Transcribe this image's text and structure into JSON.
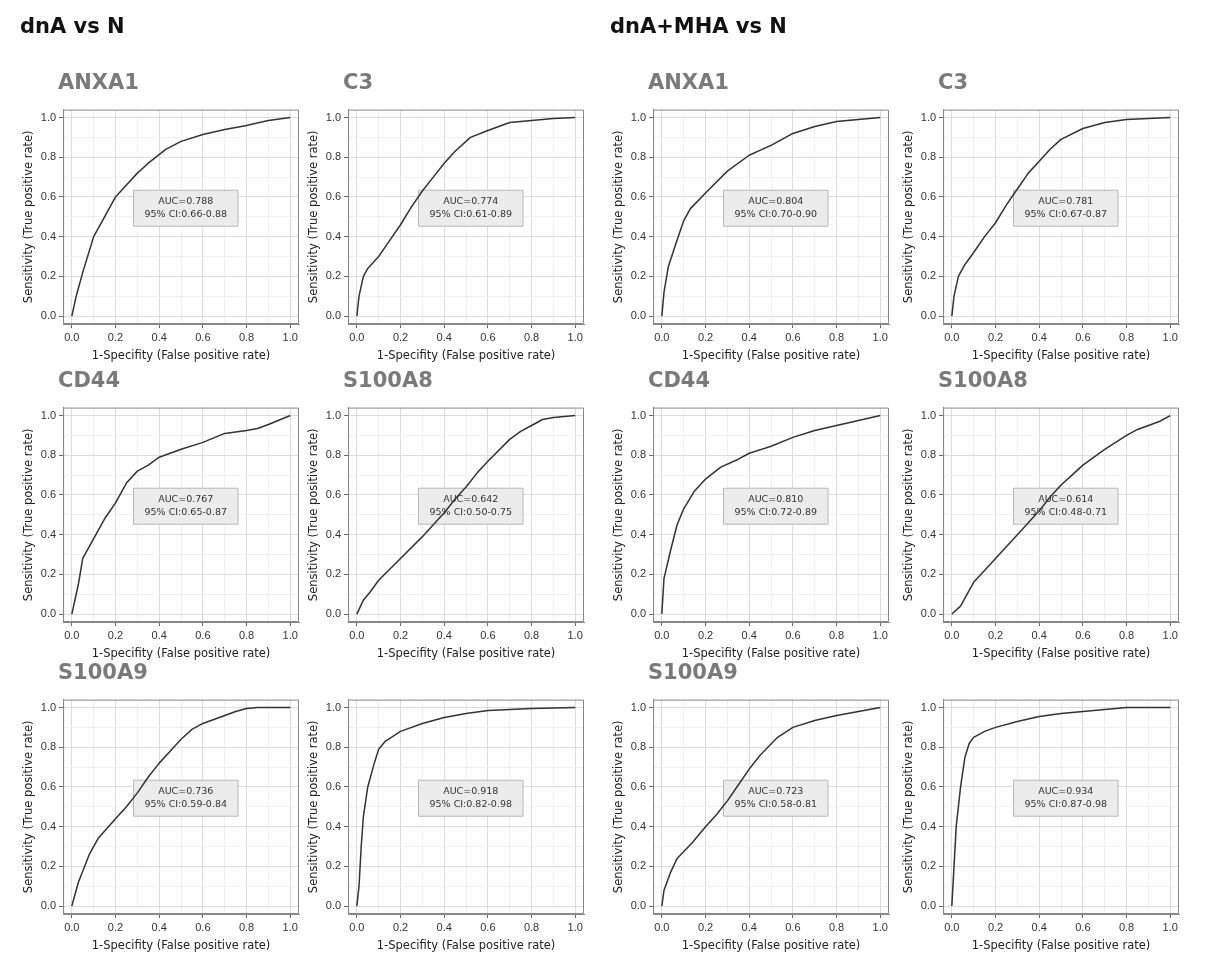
{
  "chart_data": [
    {
      "type": "line",
      "subtitle": "dnA vs N",
      "title": "ANXA1",
      "xlabel": "1-Specifity (False positive rate)",
      "ylabel": "Sensitivity (True positive rate)",
      "xlim": [
        -0.04,
        1.04
      ],
      "ylim": [
        -0.04,
        1.04
      ],
      "xticks": [
        {
          "value": 0,
          "label": "0.0"
        },
        {
          "value": 0.1,
          "label": null
        },
        {
          "value": 0.2,
          "label": "0.2"
        },
        {
          "value": 0.3,
          "label": null
        },
        {
          "value": 0.4,
          "label": "0.4"
        },
        {
          "value": 0.5,
          "label": null
        },
        {
          "value": 0.6,
          "label": "0.6"
        },
        {
          "value": 0.7,
          "label": null
        },
        {
          "value": 0.8,
          "label": "0.8"
        },
        {
          "value": 0.9,
          "label": null
        },
        {
          "value": 1,
          "label": "1.0"
        }
      ],
      "yticks": [
        {
          "value": 0,
          "label": "0.0"
        },
        {
          "value": 0.1,
          "label": null
        },
        {
          "value": 0.2,
          "label": "0.2"
        },
        {
          "value": 0.3,
          "label": null
        },
        {
          "value": 0.4,
          "label": "0.4"
        },
        {
          "value": 0.5,
          "label": null
        },
        {
          "value": 0.6,
          "label": "0.6"
        },
        {
          "value": 0.7,
          "label": null
        },
        {
          "value": 0.8,
          "label": "0.8"
        },
        {
          "value": 0.9,
          "label": null
        },
        {
          "value": 1,
          "label": "1.0"
        }
      ],
      "grid": true,
      "marker": "none",
      "annotations": [
        "AUC=0.788",
        "95% CI:0.66-0.88"
      ],
      "series": [
        {
          "color": "#333333",
          "x": [
            0,
            0.02,
            0.05,
            0.1,
            0.15,
            0.2,
            0.25,
            0.3,
            0.35,
            0.43,
            0.5,
            0.6,
            0.7,
            0.8,
            0.9,
            1
          ],
          "values": [
            0,
            0.1,
            0.22,
            0.4,
            0.5,
            0.6,
            0.66,
            0.72,
            0.77,
            0.84,
            0.88,
            0.915,
            0.94,
            0.96,
            0.985,
            1
          ]
        }
      ]
    },
    {
      "type": "line",
      "title": "C3",
      "xlabel": "1-Specifity (False positive rate)",
      "ylabel": "Sensitivity (True positive rate)",
      "xlim": [
        -0.04,
        1.04
      ],
      "ylim": [
        -0.04,
        1.04
      ],
      "xticks": [
        {
          "value": 0,
          "label": "0.0"
        },
        {
          "value": 0.1,
          "label": null
        },
        {
          "value": 0.2,
          "label": "0.2"
        },
        {
          "value": 0.3,
          "label": null
        },
        {
          "value": 0.4,
          "label": "0.4"
        },
        {
          "value": 0.5,
          "label": null
        },
        {
          "value": 0.6,
          "label": "0.6"
        },
        {
          "value": 0.7,
          "label": null
        },
        {
          "value": 0.8,
          "label": "0.8"
        },
        {
          "value": 0.9,
          "label": null
        },
        {
          "value": 1,
          "label": "1.0"
        }
      ],
      "yticks": [
        {
          "value": 0,
          "label": "0.0"
        },
        {
          "value": 0.1,
          "label": null
        },
        {
          "value": 0.2,
          "label": "0.2"
        },
        {
          "value": 0.3,
          "label": null
        },
        {
          "value": 0.4,
          "label": "0.4"
        },
        {
          "value": 0.5,
          "label": null
        },
        {
          "value": 0.6,
          "label": "0.6"
        },
        {
          "value": 0.7,
          "label": null
        },
        {
          "value": 0.8,
          "label": "0.8"
        },
        {
          "value": 0.9,
          "label": null
        },
        {
          "value": 1,
          "label": "1.0"
        }
      ],
      "grid": true,
      "marker": "none",
      "annotations": [
        "AUC=0.774",
        "95% CI:0.61-0.89"
      ],
      "series": [
        {
          "color": "#333333",
          "x": [
            0,
            0.01,
            0.03,
            0.05,
            0.1,
            0.15,
            0.2,
            0.25,
            0.3,
            0.35,
            0.4,
            0.45,
            0.52,
            0.6,
            0.7,
            0.8,
            0.9,
            1
          ],
          "values": [
            0,
            0.1,
            0.2,
            0.24,
            0.3,
            0.38,
            0.46,
            0.55,
            0.63,
            0.7,
            0.77,
            0.83,
            0.9,
            0.935,
            0.975,
            0.985,
            0.995,
            1
          ]
        }
      ]
    },
    {
      "type": "line",
      "subtitle": "dnA+MHA vs N",
      "title": "ANXA1",
      "xlabel": "1-Specifity (False positive rate)",
      "ylabel": "Sensitivity (True positive rate)",
      "xlim": [
        -0.04,
        1.04
      ],
      "ylim": [
        -0.04,
        1.04
      ],
      "xticks": [
        {
          "value": 0,
          "label": "0.0"
        },
        {
          "value": 0.1,
          "label": null
        },
        {
          "value": 0.2,
          "label": "0.2"
        },
        {
          "value": 0.3,
          "label": null
        },
        {
          "value": 0.4,
          "label": "0.4"
        },
        {
          "value": 0.5,
          "label": null
        },
        {
          "value": 0.6,
          "label": "0.6"
        },
        {
          "value": 0.7,
          "label": null
        },
        {
          "value": 0.8,
          "label": "0.8"
        },
        {
          "value": 0.9,
          "label": null
        },
        {
          "value": 1,
          "label": "1.0"
        }
      ],
      "yticks": [
        {
          "value": 0,
          "label": "0.0"
        },
        {
          "value": 0.1,
          "label": null
        },
        {
          "value": 0.2,
          "label": "0.2"
        },
        {
          "value": 0.3,
          "label": null
        },
        {
          "value": 0.4,
          "label": "0.4"
        },
        {
          "value": 0.5,
          "label": null
        },
        {
          "value": 0.6,
          "label": "0.6"
        },
        {
          "value": 0.7,
          "label": null
        },
        {
          "value": 0.8,
          "label": "0.8"
        },
        {
          "value": 0.9,
          "label": null
        },
        {
          "value": 1,
          "label": "1.0"
        }
      ],
      "grid": true,
      "marker": "none",
      "annotations": [
        "AUC=0.804",
        "95% CI:0.70-0.90"
      ],
      "series": [
        {
          "color": "#333333",
          "x": [
            0,
            0.01,
            0.03,
            0.06,
            0.1,
            0.13,
            0.2,
            0.3,
            0.4,
            0.5,
            0.6,
            0.7,
            0.8,
            0.9,
            1
          ],
          "values": [
            0,
            0.12,
            0.25,
            0.35,
            0.48,
            0.54,
            0.62,
            0.73,
            0.81,
            0.86,
            0.92,
            0.955,
            0.98,
            0.99,
            1
          ]
        }
      ]
    },
    {
      "type": "line",
      "title": "C3",
      "xlabel": "1-Specifity (False positive rate)",
      "ylabel": "Sensitivity (True positive rate)",
      "xlim": [
        -0.04,
        1.04
      ],
      "ylim": [
        -0.04,
        1.04
      ],
      "xticks": [
        {
          "value": 0,
          "label": "0.0"
        },
        {
          "value": 0.1,
          "label": null
        },
        {
          "value": 0.2,
          "label": "0.2"
        },
        {
          "value": 0.3,
          "label": null
        },
        {
          "value": 0.4,
          "label": "0.4"
        },
        {
          "value": 0.5,
          "label": null
        },
        {
          "value": 0.6,
          "label": "0.6"
        },
        {
          "value": 0.7,
          "label": null
        },
        {
          "value": 0.8,
          "label": "0.8"
        },
        {
          "value": 0.9,
          "label": null
        },
        {
          "value": 1,
          "label": "1.0"
        }
      ],
      "yticks": [
        {
          "value": 0,
          "label": "0.0"
        },
        {
          "value": 0.1,
          "label": null
        },
        {
          "value": 0.2,
          "label": "0.2"
        },
        {
          "value": 0.3,
          "label": null
        },
        {
          "value": 0.4,
          "label": "0.4"
        },
        {
          "value": 0.5,
          "label": null
        },
        {
          "value": 0.6,
          "label": "0.6"
        },
        {
          "value": 0.7,
          "label": null
        },
        {
          "value": 0.8,
          "label": "0.8"
        },
        {
          "value": 0.9,
          "label": null
        },
        {
          "value": 1,
          "label": "1.0"
        }
      ],
      "grid": true,
      "marker": "none",
      "annotations": [
        "AUC=0.781",
        "95% CI:0.67-0.87"
      ],
      "series": [
        {
          "color": "#333333",
          "x": [
            0,
            0.01,
            0.03,
            0.06,
            0.1,
            0.15,
            0.2,
            0.25,
            0.3,
            0.35,
            0.4,
            0.45,
            0.5,
            0.6,
            0.7,
            0.8,
            0.9,
            1
          ],
          "values": [
            0,
            0.1,
            0.2,
            0.26,
            0.32,
            0.4,
            0.47,
            0.56,
            0.64,
            0.72,
            0.78,
            0.84,
            0.89,
            0.945,
            0.975,
            0.99,
            0.995,
            1
          ]
        }
      ]
    },
    {
      "type": "line",
      "title": "CD44",
      "xlabel": "1-Specifity (False positive rate)",
      "ylabel": "Sensitivity (True positive rate)",
      "xlim": [
        -0.04,
        1.04
      ],
      "ylim": [
        -0.04,
        1.04
      ],
      "xticks": [
        {
          "value": 0,
          "label": "0.0"
        },
        {
          "value": 0.1,
          "label": null
        },
        {
          "value": 0.2,
          "label": "0.2"
        },
        {
          "value": 0.3,
          "label": null
        },
        {
          "value": 0.4,
          "label": "0.4"
        },
        {
          "value": 0.5,
          "label": null
        },
        {
          "value": 0.6,
          "label": "0.6"
        },
        {
          "value": 0.7,
          "label": null
        },
        {
          "value": 0.8,
          "label": "0.8"
        },
        {
          "value": 0.9,
          "label": null
        },
        {
          "value": 1,
          "label": "1.0"
        }
      ],
      "yticks": [
        {
          "value": 0,
          "label": "0.0"
        },
        {
          "value": 0.1,
          "label": null
        },
        {
          "value": 0.2,
          "label": "0.2"
        },
        {
          "value": 0.3,
          "label": null
        },
        {
          "value": 0.4,
          "label": "0.4"
        },
        {
          "value": 0.5,
          "label": null
        },
        {
          "value": 0.6,
          "label": "0.6"
        },
        {
          "value": 0.7,
          "label": null
        },
        {
          "value": 0.8,
          "label": "0.8"
        },
        {
          "value": 0.9,
          "label": null
        },
        {
          "value": 1,
          "label": "1.0"
        }
      ],
      "grid": true,
      "marker": "none",
      "annotations": [
        "AUC=0.767",
        "95% CI:0.65-0.87"
      ],
      "series": [
        {
          "color": "#333333",
          "x": [
            0,
            0.03,
            0.05,
            0.1,
            0.15,
            0.2,
            0.25,
            0.3,
            0.35,
            0.4,
            0.5,
            0.6,
            0.7,
            0.8,
            0.85,
            0.9,
            1
          ],
          "values": [
            0,
            0.15,
            0.28,
            0.38,
            0.48,
            0.56,
            0.66,
            0.72,
            0.75,
            0.79,
            0.83,
            0.865,
            0.91,
            0.925,
            0.935,
            0.955,
            1
          ]
        }
      ]
    },
    {
      "type": "line",
      "title": "S100A8",
      "xlabel": "1-Specifity (False positive rate)",
      "ylabel": "Sensitivity (True positive rate)",
      "xlim": [
        -0.04,
        1.04
      ],
      "ylim": [
        -0.04,
        1.04
      ],
      "xticks": [
        {
          "value": 0,
          "label": "0.0"
        },
        {
          "value": 0.1,
          "label": null
        },
        {
          "value": 0.2,
          "label": "0.2"
        },
        {
          "value": 0.3,
          "label": null
        },
        {
          "value": 0.4,
          "label": "0.4"
        },
        {
          "value": 0.5,
          "label": null
        },
        {
          "value": 0.6,
          "label": "0.6"
        },
        {
          "value": 0.7,
          "label": null
        },
        {
          "value": 0.8,
          "label": "0.8"
        },
        {
          "value": 0.9,
          "label": null
        },
        {
          "value": 1,
          "label": "1.0"
        }
      ],
      "yticks": [
        {
          "value": 0,
          "label": "0.0"
        },
        {
          "value": 0.1,
          "label": null
        },
        {
          "value": 0.2,
          "label": "0.2"
        },
        {
          "value": 0.3,
          "label": null
        },
        {
          "value": 0.4,
          "label": "0.4"
        },
        {
          "value": 0.5,
          "label": null
        },
        {
          "value": 0.6,
          "label": "0.6"
        },
        {
          "value": 0.7,
          "label": null
        },
        {
          "value": 0.8,
          "label": "0.8"
        },
        {
          "value": 0.9,
          "label": null
        },
        {
          "value": 1,
          "label": "1.0"
        }
      ],
      "grid": true,
      "marker": "none",
      "annotations": [
        "AUC=0.642",
        "95% CI:0.50-0.75"
      ],
      "series": [
        {
          "color": "#333333",
          "x": [
            0,
            0.03,
            0.06,
            0.1,
            0.2,
            0.3,
            0.4,
            0.45,
            0.5,
            0.55,
            0.6,
            0.7,
            0.75,
            0.8,
            0.85,
            0.9,
            1
          ],
          "values": [
            0,
            0.07,
            0.11,
            0.17,
            0.28,
            0.39,
            0.51,
            0.58,
            0.64,
            0.71,
            0.77,
            0.88,
            0.92,
            0.95,
            0.98,
            0.99,
            1
          ]
        }
      ]
    },
    {
      "type": "line",
      "title": "CD44",
      "xlabel": "1-Specifity (False positive rate)",
      "ylabel": "Sensitivity (True positive rate)",
      "xlim": [
        -0.04,
        1.04
      ],
      "ylim": [
        -0.04,
        1.04
      ],
      "xticks": [
        {
          "value": 0,
          "label": "0.0"
        },
        {
          "value": 0.1,
          "label": null
        },
        {
          "value": 0.2,
          "label": "0.2"
        },
        {
          "value": 0.3,
          "label": null
        },
        {
          "value": 0.4,
          "label": "0.4"
        },
        {
          "value": 0.5,
          "label": null
        },
        {
          "value": 0.6,
          "label": "0.6"
        },
        {
          "value": 0.7,
          "label": null
        },
        {
          "value": 0.8,
          "label": "0.8"
        },
        {
          "value": 0.9,
          "label": null
        },
        {
          "value": 1,
          "label": "1.0"
        }
      ],
      "yticks": [
        {
          "value": 0,
          "label": "0.0"
        },
        {
          "value": 0.1,
          "label": null
        },
        {
          "value": 0.2,
          "label": "0.2"
        },
        {
          "value": 0.3,
          "label": null
        },
        {
          "value": 0.4,
          "label": "0.4"
        },
        {
          "value": 0.5,
          "label": null
        },
        {
          "value": 0.6,
          "label": "0.6"
        },
        {
          "value": 0.7,
          "label": null
        },
        {
          "value": 0.8,
          "label": "0.8"
        },
        {
          "value": 0.9,
          "label": null
        },
        {
          "value": 1,
          "label": "1.0"
        }
      ],
      "grid": true,
      "marker": "none",
      "annotations": [
        "AUC=0.810",
        "95% CI:0.72-0.89"
      ],
      "series": [
        {
          "color": "#333333",
          "x": [
            0,
            0.01,
            0.04,
            0.07,
            0.1,
            0.15,
            0.2,
            0.27,
            0.35,
            0.4,
            0.5,
            0.6,
            0.7,
            0.8,
            0.9,
            1
          ],
          "values": [
            0,
            0.18,
            0.32,
            0.45,
            0.53,
            0.62,
            0.68,
            0.74,
            0.78,
            0.81,
            0.845,
            0.89,
            0.925,
            0.95,
            0.975,
            1
          ]
        }
      ]
    },
    {
      "type": "line",
      "title": "S100A8",
      "xlabel": "1-Specifity (False positive rate)",
      "ylabel": "Sensitivity (True positive rate)",
      "xlim": [
        -0.04,
        1.04
      ],
      "ylim": [
        -0.04,
        1.04
      ],
      "xticks": [
        {
          "value": 0,
          "label": "0.0"
        },
        {
          "value": 0.1,
          "label": null
        },
        {
          "value": 0.2,
          "label": "0.2"
        },
        {
          "value": 0.3,
          "label": null
        },
        {
          "value": 0.4,
          "label": "0.4"
        },
        {
          "value": 0.5,
          "label": null
        },
        {
          "value": 0.6,
          "label": "0.6"
        },
        {
          "value": 0.7,
          "label": null
        },
        {
          "value": 0.8,
          "label": "0.8"
        },
        {
          "value": 0.9,
          "label": null
        },
        {
          "value": 1,
          "label": "1.0"
        }
      ],
      "yticks": [
        {
          "value": 0,
          "label": "0.0"
        },
        {
          "value": 0.1,
          "label": null
        },
        {
          "value": 0.2,
          "label": "0.2"
        },
        {
          "value": 0.3,
          "label": null
        },
        {
          "value": 0.4,
          "label": "0.4"
        },
        {
          "value": 0.5,
          "label": null
        },
        {
          "value": 0.6,
          "label": "0.6"
        },
        {
          "value": 0.7,
          "label": null
        },
        {
          "value": 0.8,
          "label": "0.8"
        },
        {
          "value": 0.9,
          "label": null
        },
        {
          "value": 1,
          "label": "1.0"
        }
      ],
      "grid": true,
      "marker": "none",
      "annotations": [
        "AUC=0.614",
        "95% CI:0.48-0.71"
      ],
      "series": [
        {
          "color": "#333333",
          "x": [
            0,
            0.04,
            0.07,
            0.1,
            0.2,
            0.3,
            0.4,
            0.45,
            0.5,
            0.55,
            0.6,
            0.7,
            0.8,
            0.85,
            0.95,
            1
          ],
          "values": [
            0,
            0.04,
            0.1,
            0.16,
            0.28,
            0.4,
            0.52,
            0.59,
            0.65,
            0.7,
            0.75,
            0.83,
            0.9,
            0.93,
            0.97,
            1
          ]
        }
      ]
    },
    {
      "type": "line",
      "title": "S100A9",
      "xlabel": "1-Specifity (False positive rate)",
      "ylabel": "Sensitivity (True positive rate)",
      "xlim": [
        -0.04,
        1.04
      ],
      "ylim": [
        -0.04,
        1.04
      ],
      "xticks": [
        {
          "value": 0,
          "label": "0.0"
        },
        {
          "value": 0.1,
          "label": null
        },
        {
          "value": 0.2,
          "label": "0.2"
        },
        {
          "value": 0.3,
          "label": null
        },
        {
          "value": 0.4,
          "label": "0.4"
        },
        {
          "value": 0.5,
          "label": null
        },
        {
          "value": 0.6,
          "label": "0.6"
        },
        {
          "value": 0.7,
          "label": null
        },
        {
          "value": 0.8,
          "label": "0.8"
        },
        {
          "value": 0.9,
          "label": null
        },
        {
          "value": 1,
          "label": "1.0"
        }
      ],
      "yticks": [
        {
          "value": 0,
          "label": "0.0"
        },
        {
          "value": 0.1,
          "label": null
        },
        {
          "value": 0.2,
          "label": "0.2"
        },
        {
          "value": 0.3,
          "label": null
        },
        {
          "value": 0.4,
          "label": "0.4"
        },
        {
          "value": 0.5,
          "label": null
        },
        {
          "value": 0.6,
          "label": "0.6"
        },
        {
          "value": 0.7,
          "label": null
        },
        {
          "value": 0.8,
          "label": "0.8"
        },
        {
          "value": 0.9,
          "label": null
        },
        {
          "value": 1,
          "label": "1.0"
        }
      ],
      "grid": true,
      "marker": "none",
      "annotations": [
        "AUC=0.736",
        "95% CI:0.59-0.84"
      ],
      "series": [
        {
          "color": "#333333",
          "x": [
            0,
            0.03,
            0.08,
            0.12,
            0.2,
            0.25,
            0.3,
            0.35,
            0.4,
            0.45,
            0.5,
            0.55,
            0.6,
            0.7,
            0.75,
            0.8,
            0.85,
            1
          ],
          "values": [
            0,
            0.12,
            0.26,
            0.34,
            0.44,
            0.5,
            0.57,
            0.65,
            0.72,
            0.78,
            0.84,
            0.89,
            0.92,
            0.96,
            0.98,
            0.995,
            1,
            1
          ]
        }
      ]
    },
    {
      "type": "line",
      "xlabel": "1-Specifity (False positive rate)",
      "ylabel": "Sensitivity (True positive rate)",
      "xlim": [
        -0.04,
        1.04
      ],
      "ylim": [
        -0.04,
        1.04
      ],
      "xticks": [
        {
          "value": 0,
          "label": "0.0"
        },
        {
          "value": 0.1,
          "label": null
        },
        {
          "value": 0.2,
          "label": "0.2"
        },
        {
          "value": 0.3,
          "label": null
        },
        {
          "value": 0.4,
          "label": "0.4"
        },
        {
          "value": 0.5,
          "label": null
        },
        {
          "value": 0.6,
          "label": "0.6"
        },
        {
          "value": 0.7,
          "label": null
        },
        {
          "value": 0.8,
          "label": "0.8"
        },
        {
          "value": 0.9,
          "label": null
        },
        {
          "value": 1,
          "label": "1.0"
        }
      ],
      "yticks": [
        {
          "value": 0,
          "label": "0.0"
        },
        {
          "value": 0.1,
          "label": null
        },
        {
          "value": 0.2,
          "label": "0.2"
        },
        {
          "value": 0.3,
          "label": null
        },
        {
          "value": 0.4,
          "label": "0.4"
        },
        {
          "value": 0.5,
          "label": null
        },
        {
          "value": 0.6,
          "label": "0.6"
        },
        {
          "value": 0.7,
          "label": null
        },
        {
          "value": 0.8,
          "label": "0.8"
        },
        {
          "value": 0.9,
          "label": null
        },
        {
          "value": 1,
          "label": "1.0"
        }
      ],
      "grid": true,
      "marker": "none",
      "annotations": [
        "AUC=0.918",
        "95% CI:0.82-0.98"
      ],
      "series": [
        {
          "color": "#333333",
          "x": [
            0,
            0.01,
            0.02,
            0.03,
            0.05,
            0.08,
            0.1,
            0.13,
            0.2,
            0.3,
            0.4,
            0.5,
            0.6,
            0.7,
            0.8,
            1
          ],
          "values": [
            0,
            0.1,
            0.3,
            0.45,
            0.6,
            0.72,
            0.79,
            0.83,
            0.88,
            0.92,
            0.95,
            0.97,
            0.985,
            0.99,
            0.995,
            1
          ]
        }
      ]
    },
    {
      "type": "line",
      "title": "S100A9",
      "xlabel": "1-Specifity (False positive rate)",
      "ylabel": "Sensitivity (True positive rate)",
      "xlim": [
        -0.04,
        1.04
      ],
      "ylim": [
        -0.04,
        1.04
      ],
      "xticks": [
        {
          "value": 0,
          "label": "0.0"
        },
        {
          "value": 0.1,
          "label": null
        },
        {
          "value": 0.2,
          "label": "0.2"
        },
        {
          "value": 0.3,
          "label": null
        },
        {
          "value": 0.4,
          "label": "0.4"
        },
        {
          "value": 0.5,
          "label": null
        },
        {
          "value": 0.6,
          "label": "0.6"
        },
        {
          "value": 0.7,
          "label": null
        },
        {
          "value": 0.8,
          "label": "0.8"
        },
        {
          "value": 0.9,
          "label": null
        },
        {
          "value": 1,
          "label": "1.0"
        }
      ],
      "yticks": [
        {
          "value": 0,
          "label": "0.0"
        },
        {
          "value": 0.1,
          "label": null
        },
        {
          "value": 0.2,
          "label": "0.2"
        },
        {
          "value": 0.3,
          "label": null
        },
        {
          "value": 0.4,
          "label": "0.4"
        },
        {
          "value": 0.5,
          "label": null
        },
        {
          "value": 0.6,
          "label": "0.6"
        },
        {
          "value": 0.7,
          "label": null
        },
        {
          "value": 0.8,
          "label": "0.8"
        },
        {
          "value": 0.9,
          "label": null
        },
        {
          "value": 1,
          "label": "1.0"
        }
      ],
      "grid": true,
      "marker": "none",
      "annotations": [
        "AUC=0.723",
        "95% CI:0.58-0.81"
      ],
      "series": [
        {
          "color": "#333333",
          "x": [
            0,
            0.01,
            0.04,
            0.07,
            0.14,
            0.2,
            0.25,
            0.3,
            0.35,
            0.4,
            0.45,
            0.53,
            0.6,
            0.7,
            0.8,
            0.9,
            1
          ],
          "values": [
            0,
            0.08,
            0.17,
            0.24,
            0.32,
            0.4,
            0.46,
            0.53,
            0.61,
            0.69,
            0.76,
            0.85,
            0.9,
            0.935,
            0.96,
            0.98,
            1
          ]
        }
      ]
    },
    {
      "type": "line",
      "xlabel": "1-Specifity (False positive rate)",
      "ylabel": "Sensitivity (True positive rate)",
      "xlim": [
        -0.04,
        1.04
      ],
      "ylim": [
        -0.04,
        1.04
      ],
      "xticks": [
        {
          "value": 0,
          "label": "0.0"
        },
        {
          "value": 0.1,
          "label": null
        },
        {
          "value": 0.2,
          "label": "0.2"
        },
        {
          "value": 0.3,
          "label": null
        },
        {
          "value": 0.4,
          "label": "0.4"
        },
        {
          "value": 0.5,
          "label": null
        },
        {
          "value": 0.6,
          "label": "0.6"
        },
        {
          "value": 0.7,
          "label": null
        },
        {
          "value": 0.8,
          "label": "0.8"
        },
        {
          "value": 0.9,
          "label": null
        },
        {
          "value": 1,
          "label": "1.0"
        }
      ],
      "yticks": [
        {
          "value": 0,
          "label": "0.0"
        },
        {
          "value": 0.1,
          "label": null
        },
        {
          "value": 0.2,
          "label": "0.2"
        },
        {
          "value": 0.3,
          "label": null
        },
        {
          "value": 0.4,
          "label": "0.4"
        },
        {
          "value": 0.5,
          "label": null
        },
        {
          "value": 0.6,
          "label": "0.6"
        },
        {
          "value": 0.7,
          "label": null
        },
        {
          "value": 0.8,
          "label": "0.8"
        },
        {
          "value": 0.9,
          "label": null
        },
        {
          "value": 1,
          "label": "1.0"
        }
      ],
      "grid": true,
      "marker": "none",
      "annotations": [
        "AUC=0.934",
        "95% CI:0.87-0.98"
      ],
      "series": [
        {
          "color": "#333333",
          "x": [
            0,
            0.01,
            0.02,
            0.04,
            0.06,
            0.08,
            0.1,
            0.15,
            0.2,
            0.3,
            0.4,
            0.5,
            0.6,
            0.7,
            0.8,
            1
          ],
          "values": [
            0,
            0.2,
            0.4,
            0.6,
            0.75,
            0.82,
            0.85,
            0.88,
            0.9,
            0.93,
            0.955,
            0.97,
            0.98,
            0.99,
            1,
            1
          ]
        }
      ]
    }
  ]
}
